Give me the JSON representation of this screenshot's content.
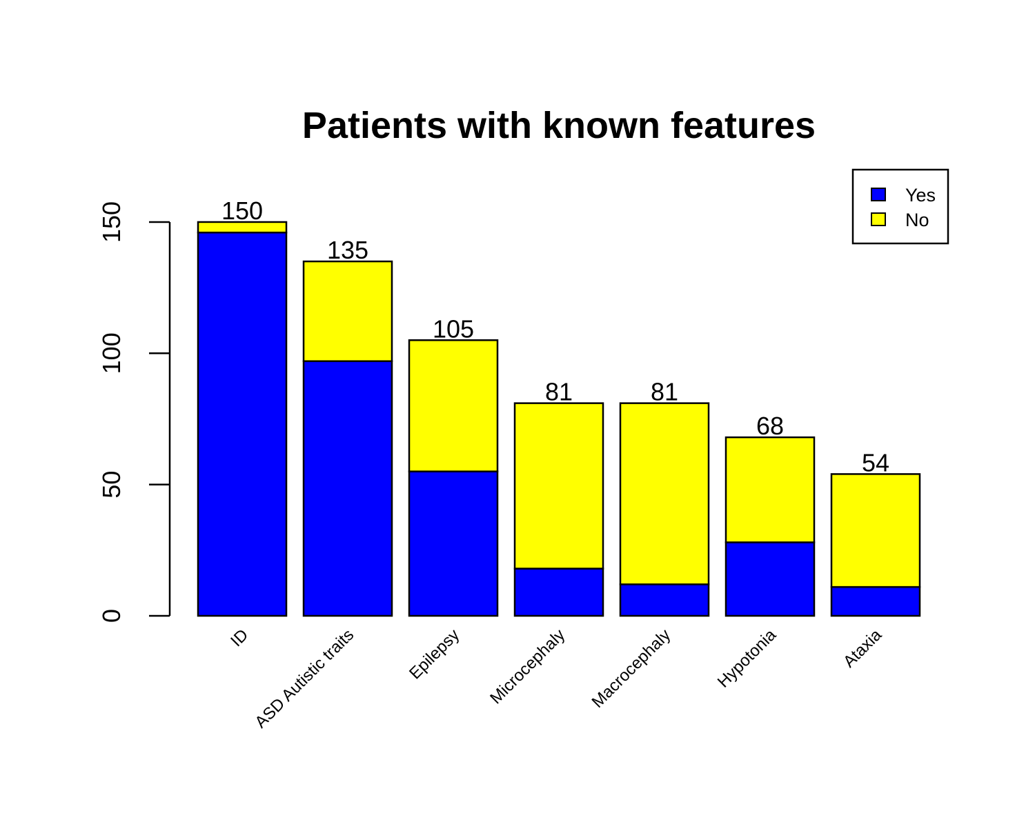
{
  "chart_data": {
    "type": "bar",
    "stacked": true,
    "title": "Patients with known features",
    "xlabel": "",
    "ylabel": "",
    "ylim": [
      0,
      165
    ],
    "y_ticks": [
      "0",
      "50",
      "100",
      "150"
    ],
    "categories": [
      "ID",
      "ASD Autistic traits",
      "Epilepsy",
      "Microcephaly",
      "Macrocephaly",
      "Hypotonia",
      "Ataxia"
    ],
    "series": [
      {
        "name": "Yes",
        "color": "#0000ff",
        "values": [
          146,
          97,
          55,
          18,
          12,
          28,
          11
        ]
      },
      {
        "name": "No",
        "color": "#ffff00",
        "values": [
          4,
          38,
          50,
          63,
          69,
          40,
          43
        ]
      }
    ],
    "totals": [
      "150",
      "135",
      "105",
      "81",
      "81",
      "68",
      "54"
    ],
    "legend": {
      "position": "top-right",
      "entries": [
        "Yes",
        "No"
      ]
    },
    "grid": false
  }
}
